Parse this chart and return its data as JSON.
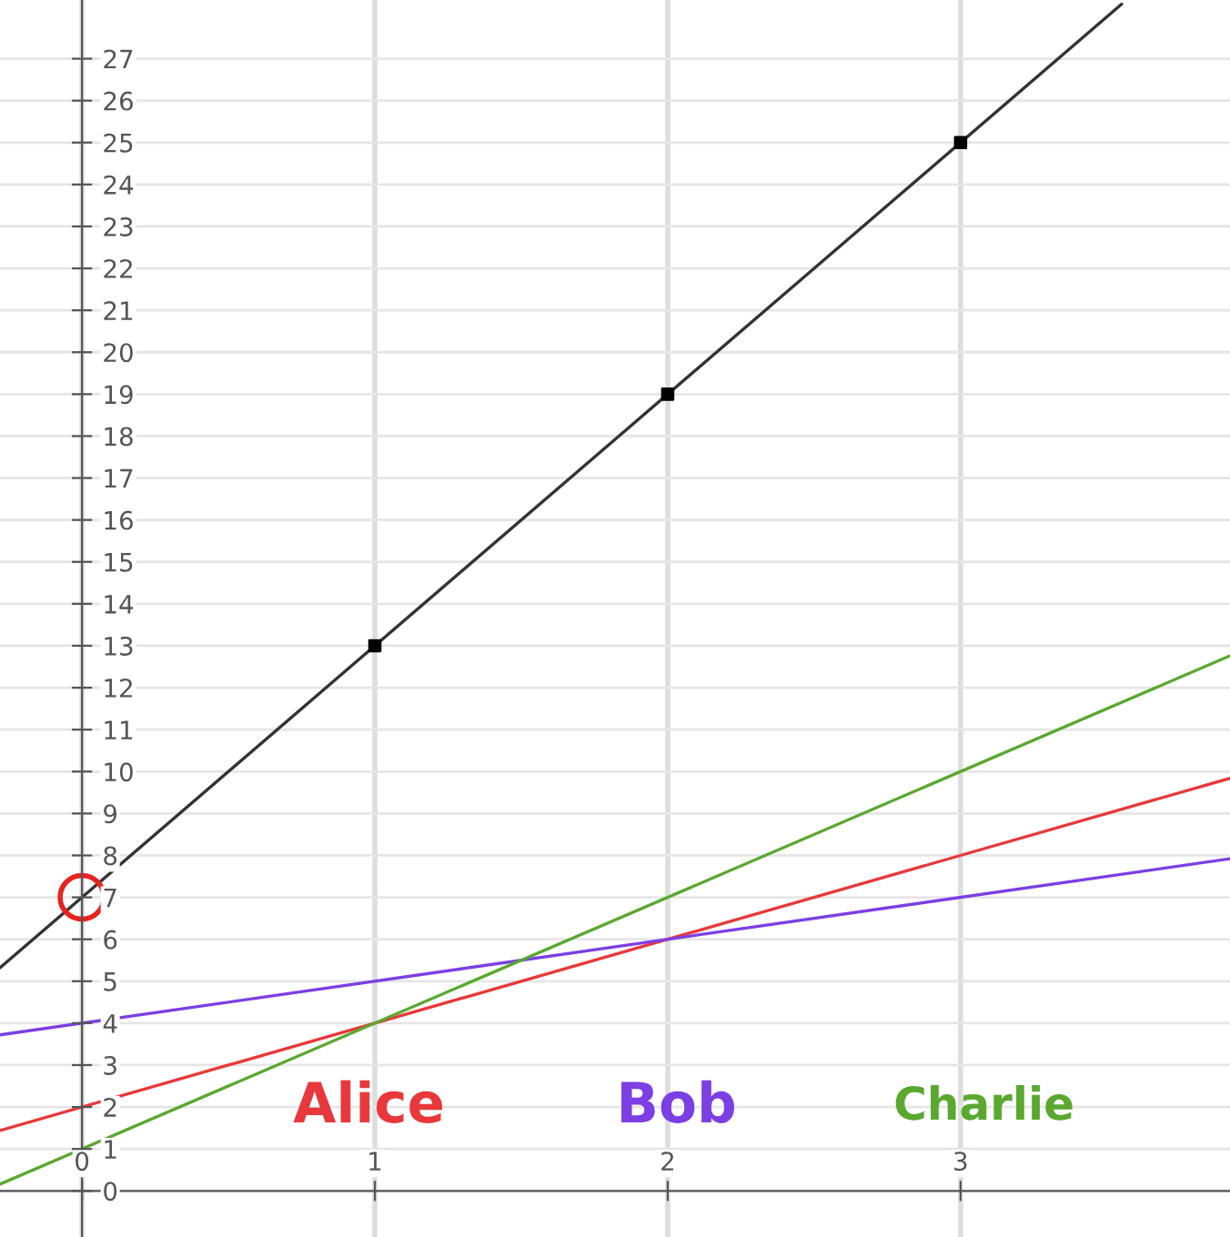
{
  "chart_data": {
    "type": "line",
    "xlim": [
      -0.28,
      3.92
    ],
    "ylim": [
      -1.1,
      28.4
    ],
    "xticks": [
      0,
      1,
      2,
      3
    ],
    "yticks": [
      0,
      1,
      2,
      3,
      4,
      5,
      6,
      7,
      8,
      9,
      10,
      11,
      12,
      13,
      14,
      15,
      16,
      17,
      18,
      19,
      20,
      21,
      22,
      23,
      24,
      25,
      26,
      27
    ],
    "grid": true,
    "legend": false,
    "series": [
      {
        "color": "#333333",
        "x": [
          -0.28,
          3.55
        ],
        "values": [
          5.32,
          28.3
        ]
      },
      {
        "type": "scatter",
        "marker": "square",
        "color": "#000000",
        "x": [
          1,
          2,
          3
        ],
        "values": [
          13,
          19,
          25
        ]
      },
      {
        "name": "Alice",
        "color": "#e8383b",
        "x": [
          -0.28,
          3.92
        ],
        "values": [
          1.44,
          9.84
        ]
      },
      {
        "name": "Bob",
        "color": "#7b3fe4",
        "x": [
          -0.28,
          3.92
        ],
        "values": [
          3.72,
          7.92
        ]
      },
      {
        "name": "Charlie",
        "color": "#5aa830",
        "x": [
          -0.28,
          3.92
        ],
        "values": [
          0.16,
          12.76
        ]
      },
      {
        "type": "scatter",
        "marker": "circle",
        "color": "#e8231f",
        "x": [
          0
        ],
        "values": [
          7
        ]
      }
    ]
  }
}
